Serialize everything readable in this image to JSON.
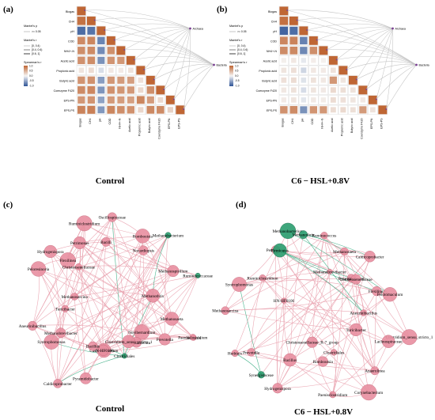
{
  "panels": {
    "a": {
      "letter": "(a)",
      "caption": "Control"
    },
    "b": {
      "letter": "(b)",
      "caption": "C6 − HSL+0.8V"
    },
    "c": {
      "letter": "(c)",
      "caption": "Control"
    },
    "d": {
      "letter": "(d)",
      "caption": "C6 − HSL+0.8V"
    }
  },
  "legend": {
    "mantel_p_title": "Mantel's p",
    "mantel_p_items": [
      ">= 0.05"
    ],
    "mantel_r_title": "Mantel's r",
    "mantel_r_items": [
      "[0, 0.4)",
      "[0.4, 0.6)",
      "[0.6, 1]"
    ],
    "spearman_title": "Spearman's r",
    "spearman_ticks": [
      "1.0",
      "0.5",
      "0.0",
      "-0.5",
      "-1.0"
    ]
  },
  "chart_data": [
    {
      "type": "heatmap",
      "panel": "a",
      "variables": [
        "Biogas",
        "CH4",
        "pH",
        "COD",
        "NH4+-N",
        "Acetic acid",
        "Propionic acid",
        "Butyric acid",
        "Coenzyme F420",
        "EPS-PN",
        "EPS-PS"
      ],
      "groups": [
        "Archaea",
        "Bacteria"
      ],
      "values": [
        [
          1.0
        ],
        [
          0.92,
          1.0
        ],
        [
          -0.85,
          -0.8,
          1.0
        ],
        [
          0.75,
          0.78,
          -0.7,
          1.0
        ],
        [
          0.72,
          0.74,
          -0.66,
          0.71,
          1.0
        ],
        [
          0.7,
          0.73,
          -0.62,
          0.68,
          0.66,
          1.0
        ],
        [
          0.12,
          0.18,
          -0.15,
          0.1,
          0.08,
          0.14,
          1.0
        ],
        [
          0.68,
          0.7,
          -0.55,
          0.66,
          0.63,
          0.61,
          0.15,
          1.0
        ],
        [
          0.74,
          0.77,
          -0.6,
          0.7,
          0.67,
          0.65,
          0.2,
          0.72,
          1.0
        ],
        [
          0.66,
          0.68,
          -0.52,
          0.64,
          0.62,
          0.6,
          0.78,
          0.63,
          0.2,
          1.0
        ],
        [
          0.8,
          0.82,
          -0.58,
          0.78,
          0.72,
          0.7,
          0.22,
          0.76,
          0.74,
          0.25,
          1.0
        ]
      ]
    },
    {
      "type": "heatmap",
      "panel": "b",
      "variables": [
        "Biogas",
        "CH4",
        "pH",
        "COD",
        "NH4+-N",
        "Acetic acid",
        "Propionic acid",
        "Butyric acid",
        "Coenzyme F420",
        "EPS-PN",
        "EPS-PS"
      ],
      "groups": [
        "Archaea",
        "Bacteria"
      ],
      "values": [
        [
          1.0
        ],
        [
          0.93,
          1.0
        ],
        [
          -0.9,
          -0.84,
          1.0
        ],
        [
          0.78,
          0.8,
          -0.72,
          1.0
        ],
        [
          0.74,
          0.76,
          -0.68,
          0.72,
          1.0
        ],
        [
          0.05,
          0.1,
          -0.08,
          0.06,
          0.04,
          1.0
        ],
        [
          0.12,
          0.16,
          -0.2,
          0.1,
          0.08,
          0.14,
          1.0
        ],
        [
          0.15,
          0.18,
          -0.12,
          0.14,
          0.1,
          0.66,
          0.12,
          1.0
        ],
        [
          0.1,
          0.14,
          -0.16,
          0.12,
          0.09,
          0.2,
          0.16,
          0.14,
          1.0
        ],
        [
          0.08,
          0.12,
          -0.1,
          0.09,
          0.07,
          0.18,
          0.15,
          0.12,
          0.1,
          1.0
        ],
        [
          0.7,
          0.74,
          -0.62,
          0.68,
          0.66,
          0.18,
          0.2,
          0.16,
          0.64,
          0.14,
          1.0
        ]
      ]
    },
    {
      "type": "network",
      "panel": "c",
      "nodes": [
        "Herbinix",
        "Paenisclostridium",
        "Prevotella",
        "Novibernardium",
        "Succiniclasticum",
        "Clostridium_sensu_stricto_1",
        "Clostridiales",
        "Corynebacterium",
        "HN-HF0106",
        "Pyramidobacter",
        "Bacillus",
        "Caldicoprobacter",
        "Syntrophomonas",
        "Methanobrevibacter",
        "Aneurinibacillus",
        "Turicibacter",
        "Methanosarcina",
        "Peloresinoria",
        "Hydrogenispora",
        "Flexilinea",
        "Christensenellaceae",
        "Petrimonas",
        "Ruminiclostridium",
        "Bacilli",
        "Oscillospiraceae",
        "Nocardiopsis",
        "Romboutsia",
        "Methanobacterium",
        "Methanospirillum",
        "Methanothrix",
        "Ruminococcaceae",
        "Methanosaeta"
      ]
    },
    {
      "type": "network",
      "panel": "d",
      "nodes": [
        "Clostridium_sensu_stricto_1",
        "Lachnospiraceae",
        "Turicibacter",
        "Anaerolinea",
        "Corynebacterium",
        "Clostridiales",
        "Paenisclostridium",
        "Romboutsia",
        "Christensenellaceae_R-7_group",
        "Bacillus",
        "Hydrogenispora",
        "Synergistaceae",
        "Prevotella",
        "Herbinix",
        "Methanosarcina",
        "HN-HF0106",
        "Syntrophomonas",
        "Ruminiclostridium",
        "Petrimonas",
        "Firmicutes",
        "Methanobacterium",
        "Methanothrix",
        "Ruminococcus",
        "Methanobrevibacter",
        "Methanosaeta",
        "Pyramidobacter",
        "Caldicoprobacter",
        "Christensenellaceae",
        "Flexilinea",
        "Pelotomaculum",
        "Aneurinibacillus"
      ]
    }
  ]
}
